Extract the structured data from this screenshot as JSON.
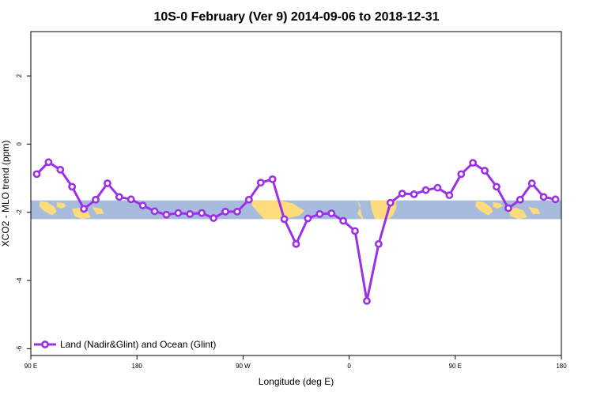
{
  "chart_data": {
    "type": "line",
    "title": "10S-0 February (Ver 9)   2014-09-06 to 2018-12-31",
    "xlabel": "Longitude (deg E)",
    "ylabel": "XCO2 - MLO trend (ppm)",
    "xlim": [
      90,
      540
    ],
    "ylim": [
      -6.2,
      3.3
    ],
    "x_ticks": [
      {
        "value": 90,
        "label": "90 E"
      },
      {
        "value": 180,
        "label": "180"
      },
      {
        "value": 270,
        "label": "90 W"
      },
      {
        "value": 360,
        "label": "0"
      },
      {
        "value": 450,
        "label": "90 E"
      },
      {
        "value": 540,
        "label": "180"
      }
    ],
    "y_ticks": [
      {
        "value": 2,
        "label": "2"
      },
      {
        "value": 0,
        "label": "0"
      },
      {
        "value": -2,
        "label": "-2"
      },
      {
        "value": -4,
        "label": "-4"
      },
      {
        "value": -6,
        "label": "-6"
      }
    ],
    "background_map_band": {
      "y_range": [
        -2.2,
        -1.65
      ],
      "ocean_color": "#a7bcdc",
      "land_color": "#fedb7c"
    },
    "legend": {
      "placement": "bottom-left",
      "entries": [
        "Land (Nadir&Glint) and Ocean (Glint)"
      ]
    },
    "series": [
      {
        "name": "Land (Nadir&Glint) and Ocean (Glint)",
        "color": "#9b30e6",
        "x": [
          95,
          105,
          115,
          125,
          135,
          145,
          155,
          165,
          175,
          185,
          195,
          205,
          215,
          225,
          235,
          245,
          255,
          265,
          275,
          285,
          295,
          305,
          315,
          325,
          335,
          345,
          355,
          365,
          375,
          385,
          395,
          405,
          415,
          425,
          435,
          445,
          455,
          465,
          475,
          485,
          495,
          505,
          515,
          525,
          535
        ],
        "y": [
          -0.88,
          -0.53,
          -0.75,
          -1.25,
          -1.9,
          -1.63,
          -1.15,
          -1.55,
          -1.62,
          -1.8,
          -1.97,
          -2.07,
          -2.02,
          -2.05,
          -2.02,
          -2.17,
          -1.98,
          -1.98,
          -1.63,
          -1.13,
          -1.03,
          -2.2,
          -2.93,
          -2.18,
          -2.05,
          -2.03,
          -2.25,
          -2.55,
          -4.6,
          -2.93,
          -1.72,
          -1.45,
          -1.47,
          -1.35,
          -1.28,
          -1.5,
          -0.88,
          -0.55,
          -0.78,
          -1.25,
          -1.88,
          -1.63,
          -1.15,
          -1.55,
          -1.62
        ]
      }
    ]
  }
}
